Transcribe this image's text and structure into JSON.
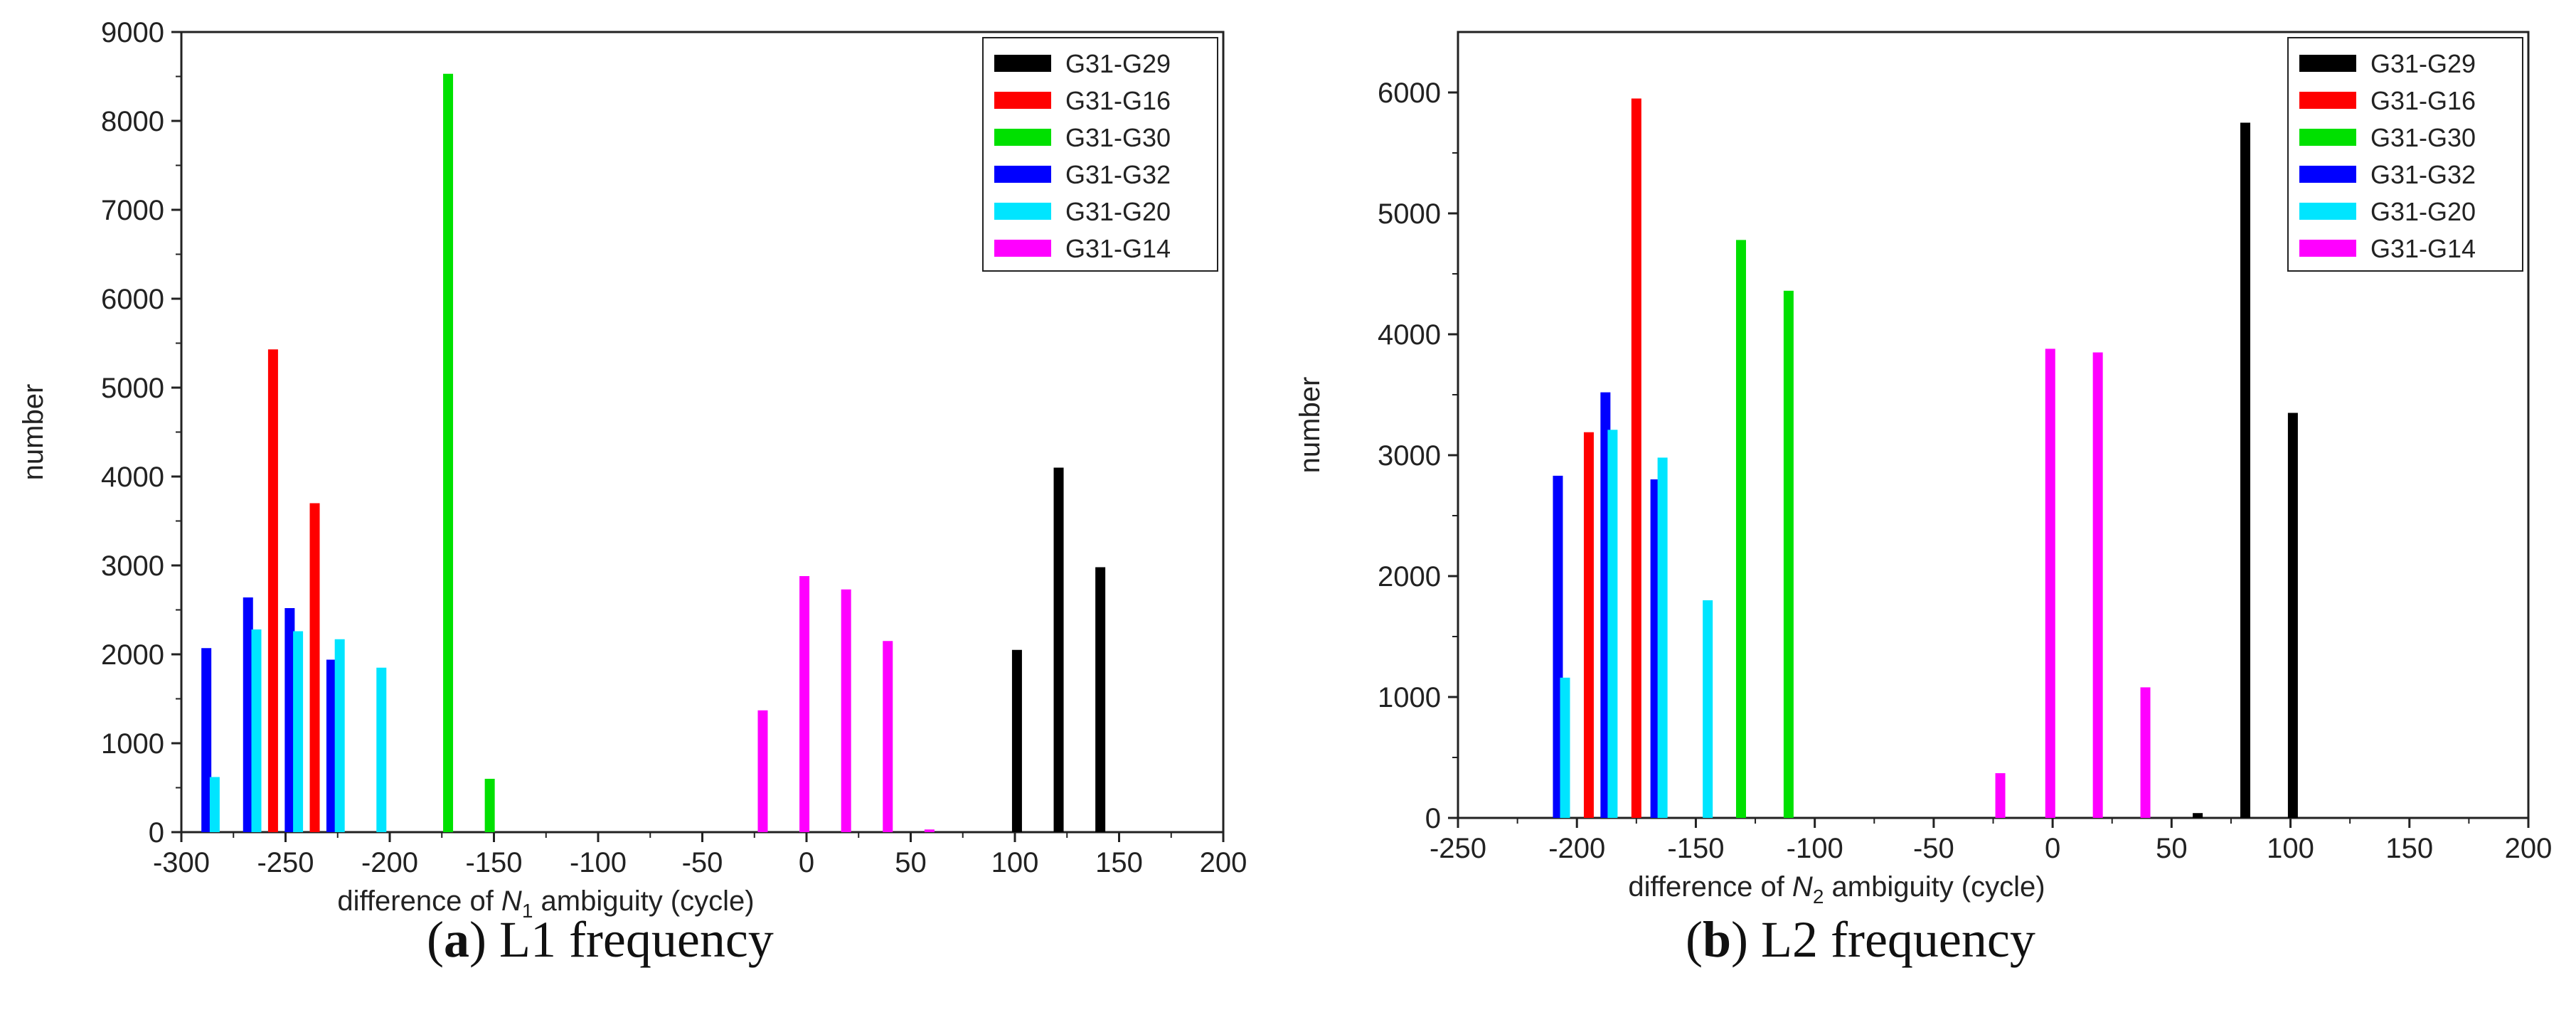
{
  "chart_data": [
    {
      "type": "bar",
      "caption_letter": "a",
      "caption_text": "L1 frequency",
      "xlabel_pre": "difference of ",
      "xlabel_var": "N",
      "xlabel_sub": "1",
      "xlabel_post": " ambiguity (cycle)",
      "ylabel": "number",
      "xlim": [
        -300,
        200
      ],
      "ylim": [
        0,
        9000
      ],
      "xticks": [
        -300,
        -250,
        -200,
        -150,
        -100,
        -50,
        0,
        50,
        100,
        150,
        200
      ],
      "yticks": [
        0,
        1000,
        2000,
        3000,
        4000,
        5000,
        6000,
        7000,
        8000,
        9000
      ],
      "legend_position": "top-right",
      "series": [
        {
          "name": "G31-G29",
          "color": "#000000",
          "points": [
            [
              101,
              2050
            ],
            [
              121,
              4100
            ],
            [
              141,
              2980
            ]
          ]
        },
        {
          "name": "G31-G16",
          "color": "#ff0000",
          "points": [
            [
              -256,
              5430
            ],
            [
              -236,
              3700
            ]
          ]
        },
        {
          "name": "G31-G30",
          "color": "#00e000",
          "points": [
            [
              -172,
              8530
            ],
            [
              -152,
              600
            ]
          ]
        },
        {
          "name": "G31-G32",
          "color": "#0000ff",
          "points": [
            [
              -288,
              2070
            ],
            [
              -268,
              2640
            ],
            [
              -248,
              2520
            ],
            [
              -228,
              1940
            ]
          ]
        },
        {
          "name": "G31-G20",
          "color": "#00e5ff",
          "points": [
            [
              -284,
              620
            ],
            [
              -264,
              2280
            ],
            [
              -244,
              2260
            ],
            [
              -224,
              2170
            ],
            [
              -204,
              1850
            ]
          ]
        },
        {
          "name": "G31-G14",
          "color": "#ff00ff",
          "points": [
            [
              -21,
              1370
            ],
            [
              -1,
              2880
            ],
            [
              19,
              2730
            ],
            [
              39,
              2150
            ],
            [
              59,
              30
            ]
          ]
        }
      ]
    },
    {
      "type": "bar",
      "caption_letter": "b",
      "caption_text": "L2 frequency",
      "xlabel_pre": "difference of ",
      "xlabel_var": "N",
      "xlabel_sub": "2",
      "xlabel_post": " ambiguity (cycle)",
      "ylabel": "number",
      "xlim": [
        -250,
        200
      ],
      "ylim": [
        0,
        6500
      ],
      "xticks": [
        -250,
        -200,
        -150,
        -100,
        -50,
        0,
        50,
        100,
        150,
        200
      ],
      "yticks": [
        0,
        1000,
        2000,
        3000,
        4000,
        5000,
        6000
      ],
      "legend_position": "top-right",
      "series": [
        {
          "name": "G31-G29",
          "color": "#000000",
          "points": [
            [
              61,
              40
            ],
            [
              81,
              5750
            ],
            [
              101,
              3350
            ]
          ]
        },
        {
          "name": "G31-G16",
          "color": "#ff0000",
          "points": [
            [
              -195,
              3190
            ],
            [
              -175,
              5950
            ]
          ]
        },
        {
          "name": "G31-G30",
          "color": "#00e000",
          "points": [
            [
              -131,
              4780
            ],
            [
              -111,
              4360
            ]
          ]
        },
        {
          "name": "G31-G32",
          "color": "#0000ff",
          "points": [
            [
              -208,
              2830
            ],
            [
              -188,
              3520
            ],
            [
              -167,
              2800
            ]
          ]
        },
        {
          "name": "G31-G20",
          "color": "#00e5ff",
          "points": [
            [
              -205,
              1160
            ],
            [
              -185,
              3210
            ],
            [
              -164,
              2980
            ],
            [
              -145,
              1800
            ]
          ]
        },
        {
          "name": "G31-G14",
          "color": "#ff00ff",
          "points": [
            [
              -22,
              370
            ],
            [
              -1,
              3880
            ],
            [
              19,
              3850
            ],
            [
              39,
              1080
            ]
          ]
        }
      ]
    }
  ]
}
